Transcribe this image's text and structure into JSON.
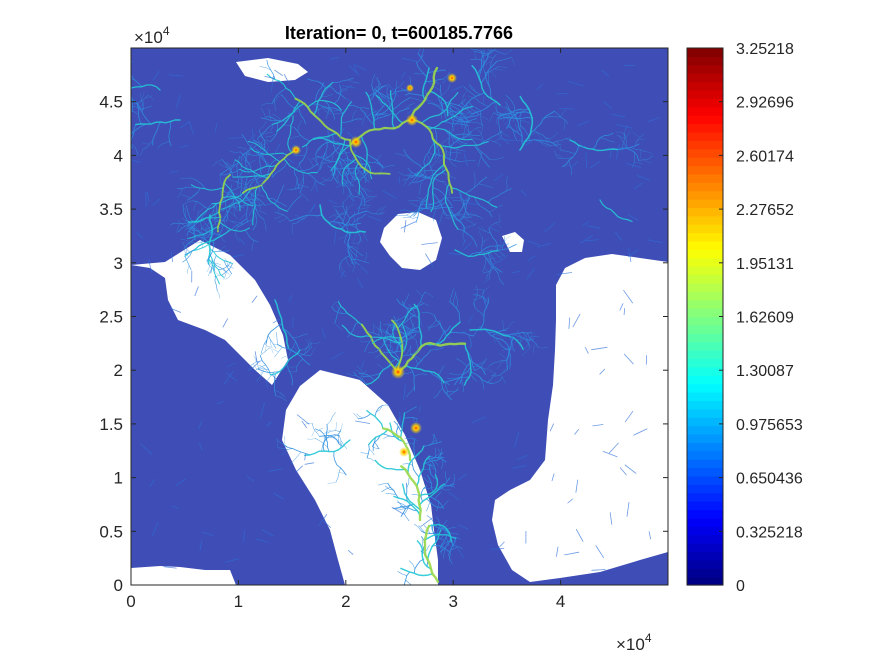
{
  "chart_data": {
    "type": "heatmap",
    "title": "Iteration= 0, t=600185.7766",
    "xlabel": "",
    "ylabel": "",
    "x_multiplier": {
      "base": "×10",
      "exponent": "4"
    },
    "y_multiplier": {
      "base": "×10",
      "exponent": "4"
    },
    "xlim": [
      0,
      5
    ],
    "ylim": [
      0,
      5
    ],
    "x_ticks": [
      0,
      1,
      2,
      3,
      4
    ],
    "x_tick_labels": [
      "0",
      "1",
      "2",
      "3",
      "4"
    ],
    "y_ticks": [
      0,
      0.5,
      1,
      1.5,
      2,
      2.5,
      3,
      3.5,
      4,
      4.5
    ],
    "y_tick_labels": [
      "0",
      "0.5",
      "1",
      "1.5",
      "2",
      "2.5",
      "3",
      "3.5",
      "4",
      "4.5"
    ],
    "colormap": "jet",
    "background_value_color": "#3e4eb6",
    "nodata_color": "#ffffff",
    "colorbar": {
      "limits": [
        0,
        3.25218
      ],
      "ticks": [
        0,
        0.325218,
        0.650436,
        0.975653,
        1.30087,
        1.62609,
        1.95131,
        2.27652,
        2.60174,
        2.92696,
        3.25218
      ],
      "tick_labels": [
        "0",
        "0.325218",
        "0.650436",
        "0.975653",
        "1.30087",
        "1.62609",
        "1.95131",
        "2.27652",
        "2.60174",
        "2.92696",
        "3.25218"
      ]
    },
    "grid": false,
    "legend": "colorbar-right"
  }
}
